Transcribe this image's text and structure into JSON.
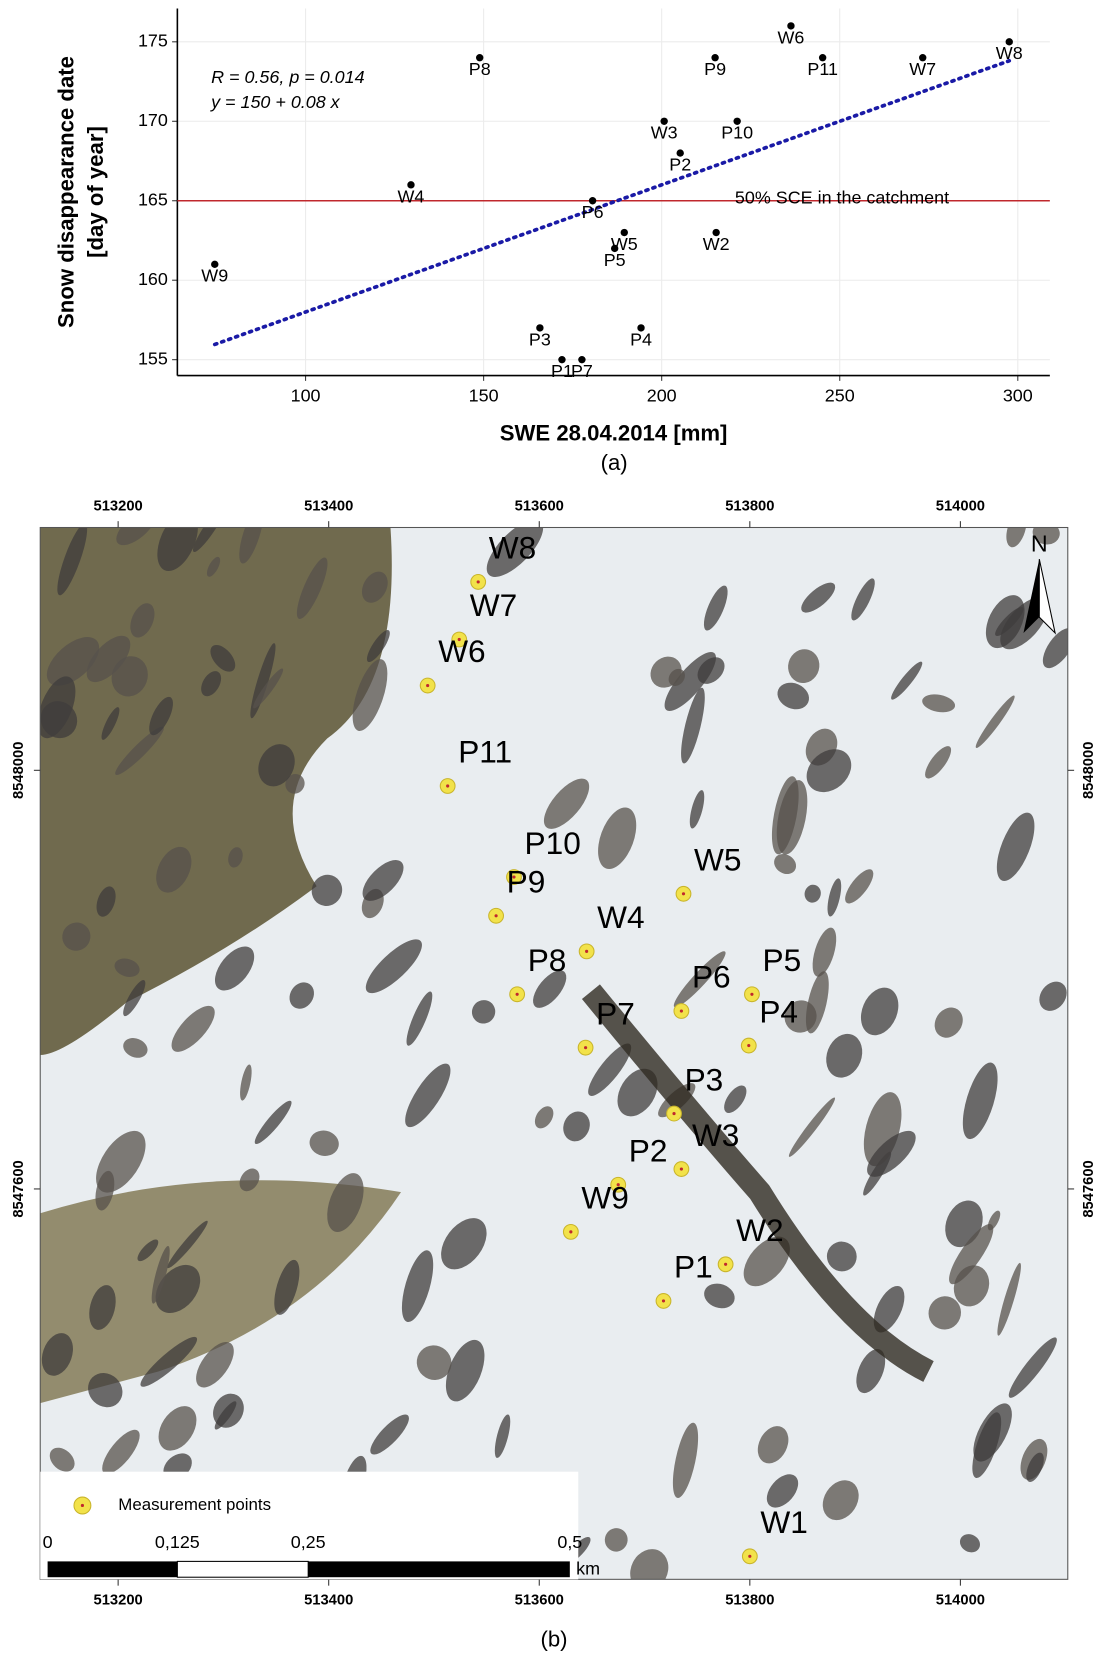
{
  "chart_data": [
    {
      "type": "scatter",
      "y_label": [
        "Snow disappearance date",
        "[day of year]"
      ],
      "x_label": "SWE 28.04.2014 [mm]",
      "caption": "(a)",
      "annotations": [
        "R = 0.56, p = 0.014",
        "y = 150 + 0.08 x"
      ],
      "fit": {
        "intercept": 150,
        "slope": 0.08,
        "color": "#1a1aa6"
      },
      "hline": {
        "value": 165,
        "label": "50% SCE in the catchment",
        "color": "#c0282d"
      },
      "labels": [
        "W9",
        "W4",
        "P8",
        "P3",
        "P1",
        "P7",
        "P6",
        "P5",
        "W5",
        "P4",
        "W3",
        "P2",
        "W2",
        "P9",
        "P10",
        "W6",
        "P11",
        "W7",
        "W8"
      ],
      "x": [
        74.5,
        129.6,
        148.9,
        165.8,
        172,
        177.6,
        180.6,
        186.8,
        189.5,
        194.2,
        200.7,
        205.2,
        215.3,
        215,
        221.2,
        236.3,
        245.2,
        273.3,
        297.6
      ],
      "values": [
        161,
        166,
        174,
        157,
        155,
        155,
        165,
        162,
        163,
        157,
        170,
        168,
        163,
        174,
        170,
        176,
        174,
        174,
        175
      ],
      "color": "#000000",
      "xlim": [
        64,
        309
      ],
      "xticks": [
        100,
        150,
        200,
        250,
        300
      ],
      "ylim": [
        154,
        177.1
      ],
      "yticks": [
        155,
        160,
        165,
        170,
        175
      ],
      "grid": true
    },
    {
      "type": "map",
      "caption": "(b)",
      "legend": "Measurement points",
      "north": "N",
      "scale_labels": [
        "0",
        "0,125",
        "0,25",
        "0,5",
        "km"
      ],
      "labels": [
        "W8",
        "W7",
        "W6",
        "P11",
        "P10",
        "P9",
        "W5",
        "W4",
        "P8",
        "P6",
        "P5",
        "P4",
        "P7",
        "P3",
        "W3",
        "P2",
        "W9",
        "W2",
        "P1",
        "W1"
      ],
      "x": [
        513542,
        513524,
        513494,
        513513,
        513576,
        513559,
        513737,
        513645,
        513579,
        513735,
        513802,
        513799,
        513644,
        513728,
        513735,
        513675,
        513630,
        513777,
        513718,
        513800
      ],
      "values": [
        8548180,
        8548125,
        8548081,
        8547985,
        8547898,
        8547861,
        8547882,
        8547827,
        8547786,
        8547770,
        8547786,
        8547737,
        8547735,
        8547672,
        8547619,
        8547604,
        8547559,
        8547528,
        8547493,
        8547249
      ],
      "color": "#f2e24a",
      "label_color": "#e0201b",
      "xlim": [
        513126,
        514102
      ],
      "xticks": [
        513200,
        513400,
        513600,
        513800,
        514000
      ],
      "ylim": [
        8547227,
        8548232
      ],
      "yticks": [
        8547600,
        8548000
      ]
    }
  ]
}
